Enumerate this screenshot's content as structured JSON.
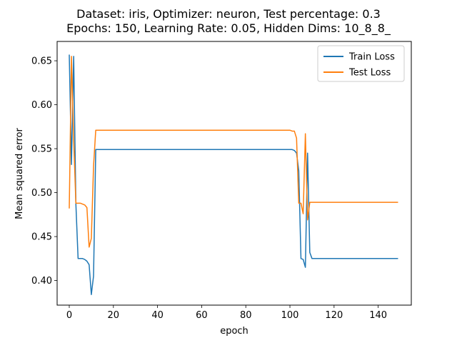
{
  "chart_data": {
    "type": "line",
    "title_line1": "Dataset: iris, Optimizer: neuron, Test percentage: 0.3",
    "title_line2": "Epochs: 150, Learning Rate: 0.05, Hidden Dims: 10_8_8_",
    "xlabel": "epoch",
    "ylabel": "Mean squared error",
    "xlim": [
      -5.5,
      155
    ],
    "ylim": [
      0.372,
      0.672
    ],
    "xticks": [
      0,
      20,
      40,
      60,
      80,
      100,
      120,
      140
    ],
    "yticks": [
      0.4,
      0.45,
      0.5,
      0.55,
      0.6,
      0.65
    ],
    "ytick_labels": [
      "0.40",
      "0.45",
      "0.50",
      "0.55",
      "0.60",
      "0.65"
    ],
    "legend_position": "top-right",
    "series": [
      {
        "name": "Train Loss",
        "color": "#1f77b4",
        "points": [
          [
            0,
            0.657
          ],
          [
            1,
            0.532
          ],
          [
            2,
            0.655
          ],
          [
            3,
            0.487
          ],
          [
            4,
            0.425
          ],
          [
            5,
            0.425
          ],
          [
            6,
            0.425
          ],
          [
            7,
            0.424
          ],
          [
            8,
            0.422
          ],
          [
            9,
            0.418
          ],
          [
            10,
            0.384
          ],
          [
            11,
            0.405
          ],
          [
            12,
            0.549
          ],
          [
            20,
            0.549
          ],
          [
            40,
            0.549
          ],
          [
            60,
            0.549
          ],
          [
            80,
            0.549
          ],
          [
            98,
            0.549
          ],
          [
            100,
            0.549
          ],
          [
            101,
            0.549
          ],
          [
            102,
            0.548
          ],
          [
            103,
            0.545
          ],
          [
            104,
            0.525
          ],
          [
            105,
            0.425
          ],
          [
            106,
            0.424
          ],
          [
            107,
            0.415
          ],
          [
            108,
            0.545
          ],
          [
            109,
            0.432
          ],
          [
            110,
            0.425
          ],
          [
            120,
            0.425
          ],
          [
            140,
            0.425
          ],
          [
            149,
            0.425
          ]
        ]
      },
      {
        "name": "Test Loss",
        "color": "#ff7f0e",
        "points": [
          [
            0,
            0.482
          ],
          [
            1,
            0.655
          ],
          [
            2,
            0.56
          ],
          [
            3,
            0.488
          ],
          [
            4,
            0.488
          ],
          [
            5,
            0.488
          ],
          [
            6,
            0.487
          ],
          [
            7,
            0.486
          ],
          [
            8,
            0.483
          ],
          [
            9,
            0.438
          ],
          [
            10,
            0.448
          ],
          [
            11,
            0.53
          ],
          [
            12,
            0.571
          ],
          [
            20,
            0.571
          ],
          [
            40,
            0.571
          ],
          [
            60,
            0.571
          ],
          [
            80,
            0.571
          ],
          [
            98,
            0.571
          ],
          [
            100,
            0.571
          ],
          [
            101,
            0.57
          ],
          [
            102,
            0.57
          ],
          [
            103,
            0.562
          ],
          [
            104,
            0.488
          ],
          [
            105,
            0.488
          ],
          [
            106,
            0.476
          ],
          [
            107,
            0.567
          ],
          [
            108,
            0.469
          ],
          [
            109,
            0.489
          ],
          [
            110,
            0.489
          ],
          [
            120,
            0.489
          ],
          [
            140,
            0.489
          ],
          [
            149,
            0.489
          ]
        ]
      }
    ]
  }
}
